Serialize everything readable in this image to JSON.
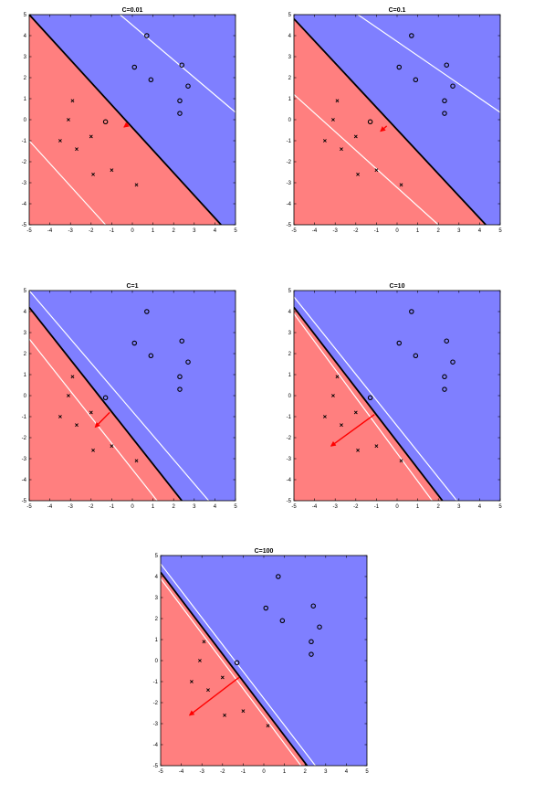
{
  "chart_data": [
    {
      "type": "scatter",
      "title": "C=0.01",
      "xlim": [
        -5,
        5
      ],
      "ylim": [
        -5,
        5
      ],
      "xticks": [
        "-5",
        "-4",
        "-3",
        "-2",
        "-1",
        "0",
        "1",
        "2",
        "3",
        "4",
        "5"
      ],
      "yticks": [
        "-5",
        "-4",
        "-3",
        "-2",
        "-1",
        "0",
        "1",
        "2",
        "3",
        "4",
        "5"
      ],
      "decision_boundary": [
        [
          -5,
          5
        ],
        [
          4.3,
          -5
        ]
      ],
      "margin_lines": [
        [
          [
            -0.6,
            5
          ],
          [
            5,
            0.35
          ]
        ],
        [
          [
            -5,
            -1.0
          ],
          [
            -1.3,
            -5
          ]
        ]
      ],
      "weight_arrow": {
        "from": [
          -0.2,
          -0.2
        ],
        "to": [
          -0.4,
          -0.35
        ]
      },
      "colors": {
        "negative_region": "#ff7f7f",
        "positive_region": "#7f7fff",
        "boundary": "#000000",
        "margin": "#ffffff",
        "arrow": "#ff0000"
      }
    },
    {
      "type": "scatter",
      "title": "C=0.1",
      "xlim": [
        -5,
        5
      ],
      "ylim": [
        -5,
        5
      ],
      "xticks": [
        "-5",
        "-4",
        "-3",
        "-2",
        "-1",
        "0",
        "1",
        "2",
        "3",
        "4",
        "5"
      ],
      "yticks": [
        "-5",
        "-4",
        "-3",
        "-2",
        "-1",
        "0",
        "1",
        "2",
        "3",
        "4",
        "5"
      ],
      "decision_boundary": [
        [
          -5,
          4.8
        ],
        [
          4.3,
          -5
        ]
      ],
      "margin_lines": [
        [
          [
            -1.9,
            5
          ],
          [
            5,
            0.35
          ]
        ],
        [
          [
            -5,
            1.2
          ],
          [
            2.0,
            -5
          ]
        ]
      ],
      "weight_arrow": {
        "from": [
          -0.5,
          -0.3
        ],
        "to": [
          -0.8,
          -0.55
        ]
      },
      "colors": {
        "negative_region": "#ff7f7f",
        "positive_region": "#7f7fff",
        "boundary": "#000000",
        "margin": "#ffffff",
        "arrow": "#ff0000"
      }
    },
    {
      "type": "scatter",
      "title": "C=1",
      "xlim": [
        -5,
        5
      ],
      "ylim": [
        -5,
        5
      ],
      "xticks": [
        "-5",
        "-4",
        "-3",
        "-2",
        "-1",
        "0",
        "1",
        "2",
        "3",
        "4",
        "5"
      ],
      "yticks": [
        "-5",
        "-4",
        "-3",
        "-2",
        "-1",
        "0",
        "1",
        "2",
        "3",
        "4",
        "5"
      ],
      "decision_boundary": [
        [
          -5,
          4.2
        ],
        [
          2.4,
          -5
        ]
      ],
      "margin_lines": [
        [
          [
            -5,
            5
          ],
          [
            3.7,
            -5
          ]
        ],
        [
          [
            -5,
            2.7
          ],
          [
            1.2,
            -5
          ]
        ]
      ],
      "weight_arrow": {
        "from": [
          -1.1,
          -0.8
        ],
        "to": [
          -1.8,
          -1.5
        ]
      },
      "colors": {
        "negative_region": "#ff7f7f",
        "positive_region": "#7f7fff",
        "boundary": "#000000",
        "margin": "#ffffff",
        "arrow": "#ff0000"
      }
    },
    {
      "type": "scatter",
      "title": "C=10",
      "xlim": [
        -5,
        5
      ],
      "ylim": [
        -5,
        5
      ],
      "xticks": [
        "-5",
        "-4",
        "-3",
        "-2",
        "-1",
        "0",
        "1",
        "2",
        "3",
        "4",
        "5"
      ],
      "yticks": [
        "-5",
        "-4",
        "-3",
        "-2",
        "-1",
        "0",
        "1",
        "2",
        "3",
        "4",
        "5"
      ],
      "decision_boundary": [
        [
          -5,
          4.2
        ],
        [
          2.2,
          -5
        ]
      ],
      "margin_lines": [
        [
          [
            -5,
            4.7
          ],
          [
            2.9,
            -5
          ]
        ],
        [
          [
            -5,
            3.9
          ],
          [
            1.7,
            -5
          ]
        ]
      ],
      "weight_arrow": {
        "from": [
          -1.1,
          -0.9
        ],
        "to": [
          -3.2,
          -2.4
        ]
      },
      "colors": {
        "negative_region": "#ff7f7f",
        "positive_region": "#7f7fff",
        "boundary": "#000000",
        "margin": "#ffffff",
        "arrow": "#ff0000"
      }
    },
    {
      "type": "scatter",
      "title": "C=100",
      "xlim": [
        -5,
        5
      ],
      "ylim": [
        -5,
        5
      ],
      "xticks": [
        "-5",
        "-4",
        "-3",
        "-2",
        "-1",
        "0",
        "1",
        "2",
        "3",
        "4",
        "5"
      ],
      "yticks": [
        "-5",
        "-4",
        "-3",
        "-2",
        "-1",
        "0",
        "1",
        "2",
        "3",
        "4",
        "5"
      ],
      "decision_boundary": [
        [
          -5,
          4.2
        ],
        [
          2.1,
          -5
        ]
      ],
      "margin_lines": [
        [
          [
            -5,
            4.6
          ],
          [
            2.5,
            -5
          ]
        ],
        [
          [
            -5,
            3.9
          ],
          [
            1.8,
            -5
          ]
        ]
      ],
      "weight_arrow": {
        "from": [
          -1.2,
          -0.8
        ],
        "to": [
          -3.6,
          -2.6
        ]
      },
      "colors": {
        "negative_region": "#ff7f7f",
        "positive_region": "#7f7fff",
        "boundary": "#000000",
        "margin": "#ffffff",
        "arrow": "#ff0000"
      }
    }
  ],
  "points": {
    "negative_x_marks": [
      [
        -2.9,
        0.9
      ],
      [
        -3.1,
        0.0
      ],
      [
        -2.7,
        -1.4
      ],
      [
        -3.5,
        -1.0
      ],
      [
        -2.0,
        -0.8
      ],
      [
        -1.9,
        -2.6
      ],
      [
        -1.0,
        -2.4
      ],
      [
        0.2,
        -3.1
      ]
    ],
    "positive_o_marks": [
      [
        0.7,
        4.0
      ],
      [
        0.1,
        2.5
      ],
      [
        0.9,
        1.9
      ],
      [
        2.4,
        2.6
      ],
      [
        2.7,
        1.6
      ],
      [
        2.3,
        0.9
      ],
      [
        2.3,
        0.3
      ],
      [
        -1.3,
        -0.1
      ]
    ]
  }
}
